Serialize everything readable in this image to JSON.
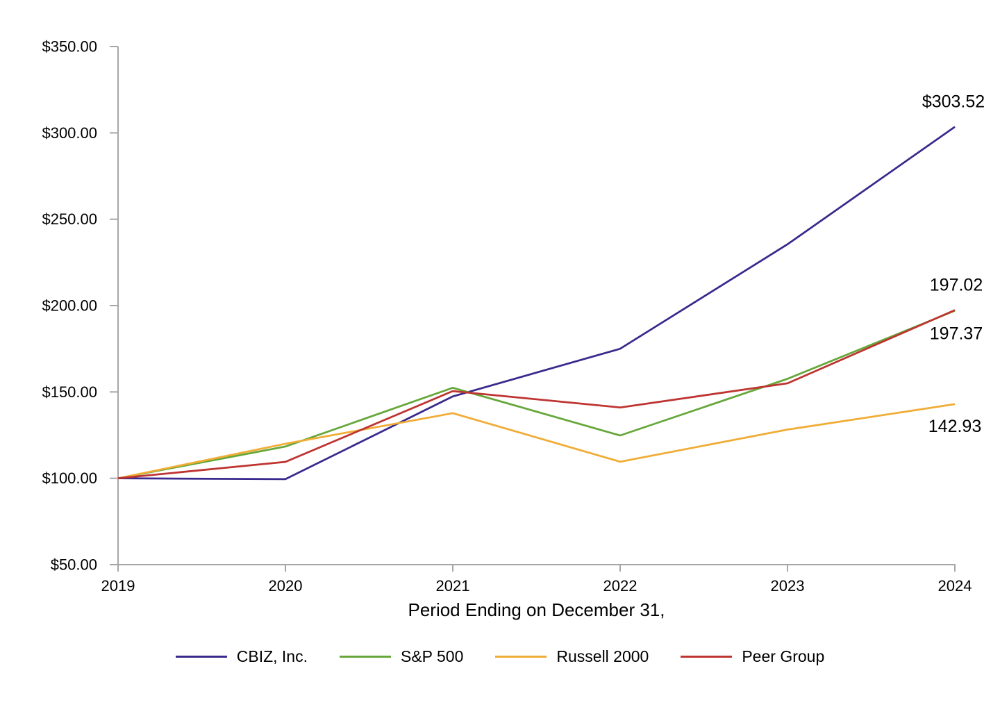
{
  "chart_data": {
    "type": "line",
    "title": "",
    "xlabel": "Period Ending on December 31,",
    "ylabel": "",
    "categories": [
      "2019",
      "2020",
      "2021",
      "2022",
      "2023",
      "2024"
    ],
    "y_ticks": {
      "values": [
        50,
        100,
        150,
        200,
        250,
        300,
        350
      ],
      "labels": [
        "$50.00",
        "$100.00",
        "$150.00",
        "$200.00",
        "$250.00",
        "$300.00",
        "$350.00"
      ]
    },
    "ylim": [
      50,
      350
    ],
    "grid": false,
    "legend_position": "bottom",
    "axis_color": "#A6A6A6",
    "text_color": "#000000",
    "series": [
      {
        "name": "CBIZ, Inc.",
        "color": "#39298C",
        "values": [
          100,
          99.5,
          147.4,
          175.0,
          235.5,
          303.52
        ],
        "end_label": "$303.52"
      },
      {
        "name": "S&P 500",
        "color": "#66A73A",
        "values": [
          100,
          118.4,
          152.4,
          124.8,
          157.6,
          197.02
        ],
        "end_label": "197.02"
      },
      {
        "name": "Russell 2000",
        "color": "#F0AC35",
        "values": [
          100,
          120.0,
          137.7,
          109.6,
          128.2,
          142.93
        ],
        "end_label": "142.93"
      },
      {
        "name": "Peer Group",
        "color": "#BE3431",
        "values": [
          100,
          109.5,
          150.5,
          141.0,
          155.0,
          197.37
        ],
        "end_label": "197.37"
      }
    ]
  }
}
